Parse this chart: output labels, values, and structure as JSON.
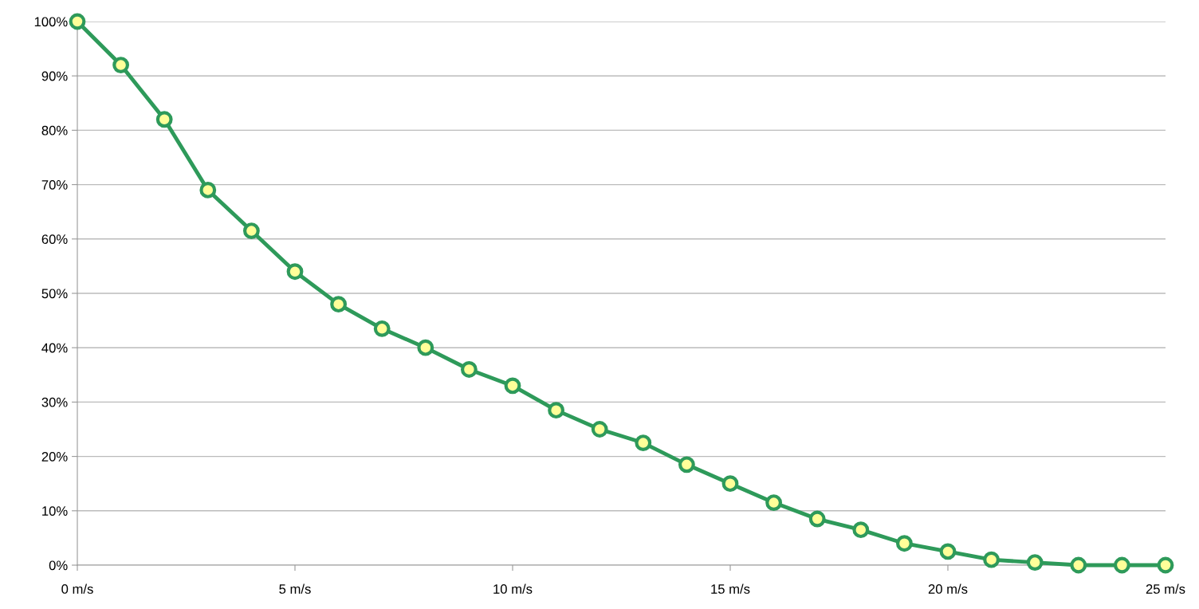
{
  "chart_data": {
    "type": "line",
    "x": [
      0,
      1,
      2,
      3,
      4,
      5,
      6,
      7,
      8,
      9,
      10,
      11,
      12,
      13,
      14,
      15,
      16,
      17,
      18,
      19,
      20,
      21,
      22,
      23,
      24,
      25
    ],
    "series": [
      {
        "color": "#2e9a5a",
        "values": [
          100,
          92,
          82,
          69,
          61.5,
          54,
          48,
          43.5,
          40,
          36,
          33,
          28.5,
          25,
          22.5,
          18.5,
          15,
          11.5,
          8.5,
          6.5,
          4,
          2.5,
          1,
          0.5,
          0,
          0,
          0
        ]
      }
    ],
    "xlim": [
      0,
      25
    ],
    "xticks": [
      {
        "value": 0,
        "label": "0 m/s"
      },
      {
        "value": 5,
        "label": "5 m/s"
      },
      {
        "value": 10,
        "label": "10 m/s"
      },
      {
        "value": 15,
        "label": "15 m/s"
      },
      {
        "value": 20,
        "label": "20 m/s"
      },
      {
        "value": 25,
        "label": "25 m/s"
      }
    ],
    "ylim": [
      0,
      100
    ],
    "yticks": [
      {
        "value": 0,
        "label": "0%"
      },
      {
        "value": 10,
        "label": "10%"
      },
      {
        "value": 20,
        "label": "20%"
      },
      {
        "value": 30,
        "label": "30%"
      },
      {
        "value": 40,
        "label": "40%"
      },
      {
        "value": 50,
        "label": "50%"
      },
      {
        "value": 60,
        "label": "60%"
      },
      {
        "value": 70,
        "label": "70%"
      },
      {
        "value": 80,
        "label": "80%"
      },
      {
        "value": 90,
        "label": "90%"
      },
      {
        "value": 100,
        "label": "100%"
      }
    ],
    "grid": "y",
    "marker": "circle",
    "line_style": "solid"
  }
}
